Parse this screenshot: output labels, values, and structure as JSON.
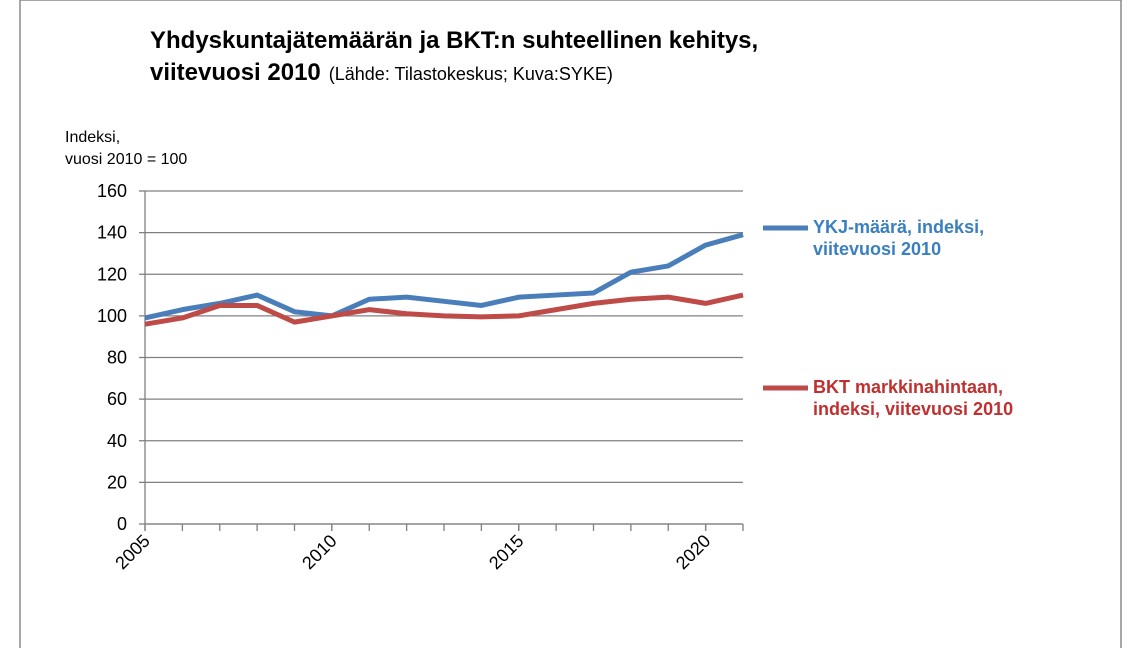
{
  "chart_data": {
    "type": "line",
    "title_lines": [
      "Yhdyskuntajätemäärän ja BKT:n suhteellinen kehitys,",
      "viitevuosi 2010"
    ],
    "source": "(Lähde: Tilastokeskus; Kuva:SYKE)",
    "ylabel_lines": [
      "Indeksi,",
      "vuosi 2010 = 100"
    ],
    "x": [
      2005,
      2006,
      2007,
      2008,
      2009,
      2010,
      2011,
      2012,
      2013,
      2014,
      2015,
      2016,
      2017,
      2018,
      2019,
      2020,
      2021
    ],
    "series": [
      {
        "name": "YKJ-määrä, indeksi, viitevuosi 2010",
        "color": "#4a7ebb",
        "text_color": "#3a7fc0",
        "values": [
          99,
          103,
          106,
          110,
          102,
          100,
          108,
          109,
          107,
          105,
          109,
          110,
          111,
          121,
          124,
          134,
          139
        ]
      },
      {
        "name": "BKT markkinahintaan, indeksi, viitevuosi 2010",
        "color": "#be4b48",
        "text_color": "#c0302f",
        "values": [
          96,
          99,
          105,
          105,
          97,
          100,
          103,
          101,
          100,
          99.5,
          100,
          103,
          106,
          108,
          109,
          106,
          110
        ]
      }
    ],
    "xlim": [
      2005,
      2021
    ],
    "xticks": [
      2005,
      2010,
      2015,
      2020
    ],
    "ylim": [
      0,
      160
    ],
    "yticks": [
      0,
      20,
      40,
      60,
      80,
      100,
      120,
      140,
      160
    ],
    "grid": true
  }
}
